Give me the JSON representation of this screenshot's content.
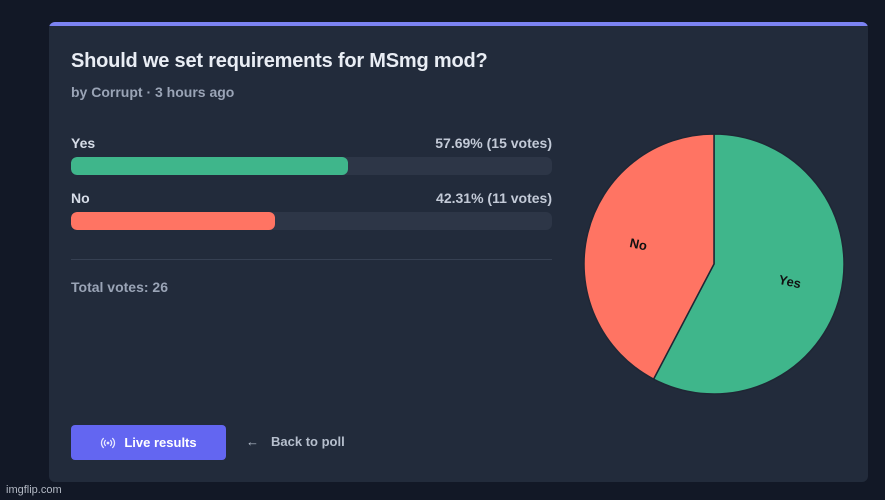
{
  "poll": {
    "title": "Should we set requirements for MSmg mod?",
    "meta": "by Corrupt · 3 hours ago",
    "options": [
      {
        "label": "Yes",
        "stat": "57.69% (15 votes)",
        "percent": 57.69,
        "color": "#3fb68b"
      },
      {
        "label": "No",
        "stat": "42.31% (11 votes)",
        "percent": 42.31,
        "color": "#ff7463"
      }
    ],
    "total": "Total votes: 26"
  },
  "actions": {
    "live_label": "Live results",
    "back_label": "Back to poll",
    "live_icon": "broadcast-icon",
    "back_icon": "arrow-left-icon"
  },
  "colors": {
    "accent": "#6366f1",
    "card": "#222b3b",
    "background": "#121826"
  },
  "chart_data": {
    "type": "pie",
    "categories": [
      "Yes",
      "No"
    ],
    "values": [
      57.69,
      42.31
    ],
    "colors": [
      "#3fb68b",
      "#ff7463"
    ]
  },
  "watermark": "imgflip.com"
}
